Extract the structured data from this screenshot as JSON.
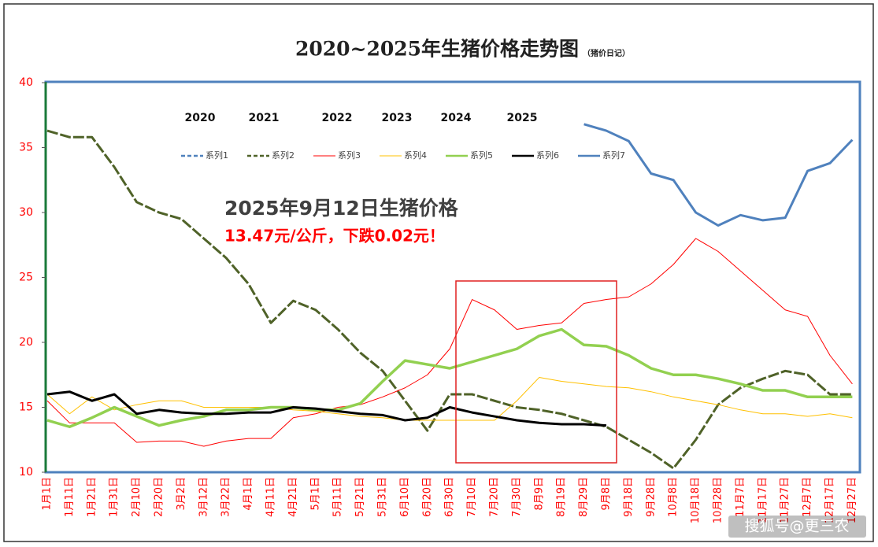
{
  "chart_data": {
    "type": "line",
    "title": "2020~2025年生猪价格走势图",
    "subtitle": "（猪价日记）",
    "annotations": [
      "2025年9月12日生猪价格",
      "13.47元/公斤，下跌0.02元！"
    ],
    "year_labels": [
      "2020",
      "2021",
      "2022",
      "2023",
      "2024",
      "2025"
    ],
    "watermark": "搜狐号@更三农",
    "categories": [
      "1月1日",
      "1月11日",
      "1月21日",
      "1月31日",
      "2月10日",
      "2月20日",
      "3月2日",
      "3月12日",
      "3月22日",
      "4月1日",
      "4月11日",
      "4月21日",
      "5月1日",
      "5月11日",
      "5月21日",
      "5月31日",
      "6月10日",
      "6月20日",
      "6月30日",
      "7月10日",
      "7月20日",
      "7月30日",
      "8月9日",
      "8月19日",
      "8月29日",
      "9月8日",
      "9月18日",
      "9月28日",
      "10月8日",
      "10月18日",
      "10月28日",
      "11月7日",
      "11月17日",
      "11月27日",
      "12月7日",
      "12月17日",
      "12月27日"
    ],
    "ylim": [
      10,
      40
    ],
    "yticks": [
      10,
      15,
      20,
      25,
      30,
      35,
      40
    ],
    "series": [
      {
        "name": "系列1",
        "color": "#4f81bd",
        "dashed": true,
        "width": 2.5,
        "values": [
          null,
          null,
          null,
          null,
          null,
          null,
          null,
          null,
          null,
          null,
          null,
          null,
          null,
          null,
          null,
          null,
          null,
          null,
          null,
          null,
          null,
          null,
          null,
          null,
          null,
          null,
          null,
          null,
          null,
          null,
          null,
          null,
          null,
          null,
          null,
          null,
          null
        ]
      },
      {
        "name": "系列2",
        "color": "#4f6228",
        "dashed": true,
        "width": 3,
        "values": [
          36.3,
          35.8,
          35.8,
          33.5,
          30.8,
          30.0,
          29.5,
          28.0,
          26.5,
          24.5,
          21.5,
          23.2,
          22.5,
          21.0,
          19.2,
          17.8,
          15.5,
          13.2,
          16.0,
          16.0,
          15.5,
          15.0,
          14.8,
          14.5,
          14.0,
          13.5,
          12.5,
          11.5,
          10.3,
          12.5,
          15.2,
          16.5,
          17.2,
          17.8,
          17.5,
          16.0,
          16.0
        ]
      },
      {
        "name": "系列3",
        "color": "#ff0000",
        "dashed": false,
        "width": 1,
        "values": [
          15.5,
          13.8,
          13.8,
          13.8,
          12.3,
          12.4,
          12.4,
          12.0,
          12.4,
          12.6,
          12.6,
          14.2,
          14.5,
          15.0,
          15.2,
          15.8,
          16.5,
          17.5,
          19.5,
          23.3,
          22.5,
          21.0,
          21.3,
          21.5,
          23.0,
          23.3,
          23.5,
          24.5,
          26.0,
          28.0,
          27.0,
          25.5,
          24.0,
          22.5,
          22.0,
          19.0,
          16.8
        ]
      },
      {
        "name": "系列4",
        "color": "#ffc000",
        "dashed": false,
        "width": 1,
        "values": [
          16.0,
          14.5,
          15.8,
          14.8,
          15.2,
          15.5,
          15.5,
          15.0,
          15.0,
          15.0,
          15.0,
          14.8,
          14.7,
          14.5,
          14.3,
          14.2,
          14.0,
          14.0,
          14.0,
          14.0,
          14.0,
          15.5,
          17.3,
          17.0,
          16.8,
          16.6,
          16.5,
          16.2,
          15.8,
          15.5,
          15.2,
          14.8,
          14.5,
          14.5,
          14.3,
          14.5,
          14.2
        ]
      },
      {
        "name": "系列5",
        "color": "#92d050",
        "dashed": false,
        "width": 3.5,
        "values": [
          14.0,
          13.5,
          14.2,
          15.0,
          14.3,
          13.6,
          14.0,
          14.3,
          14.8,
          14.8,
          15.0,
          15.0,
          14.8,
          14.8,
          15.3,
          17.0,
          18.6,
          18.3,
          18.0,
          18.5,
          19.0,
          19.5,
          20.5,
          21.0,
          19.8,
          19.7,
          19.0,
          18.0,
          17.5,
          17.5,
          17.2,
          16.8,
          16.3,
          16.3,
          15.8,
          15.8,
          15.8
        ]
      },
      {
        "name": "系列6",
        "color": "#000000",
        "dashed": false,
        "width": 3,
        "values": [
          16.0,
          16.2,
          15.5,
          16.0,
          14.5,
          14.8,
          14.6,
          14.5,
          14.5,
          14.6,
          14.6,
          15.0,
          14.9,
          14.7,
          14.5,
          14.4,
          14.0,
          14.2,
          15.0,
          14.6,
          14.3,
          14.0,
          13.8,
          13.7,
          13.7,
          13.6,
          null,
          null,
          null,
          null,
          null,
          null,
          null,
          null,
          null,
          null,
          null
        ]
      },
      {
        "name": "系列7",
        "color": "#4f81bd",
        "dashed": false,
        "width": 3,
        "values": [
          null,
          null,
          null,
          null,
          null,
          null,
          null,
          null,
          null,
          null,
          null,
          null,
          null,
          null,
          null,
          null,
          null,
          null,
          null,
          null,
          null,
          null,
          null,
          null,
          36.8,
          36.3,
          35.5,
          33.0,
          32.5,
          30.0,
          29.0,
          29.8,
          29.4,
          29.6,
          33.2,
          33.8,
          35.6
        ]
      }
    ]
  }
}
